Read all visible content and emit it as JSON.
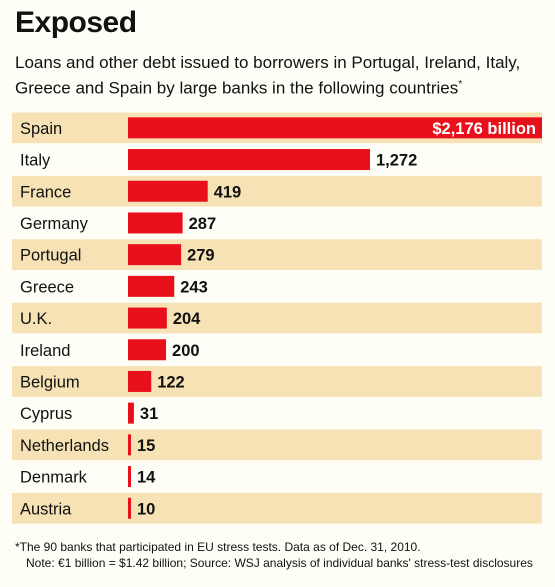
{
  "header": {
    "title": "Exposed",
    "subtitle": "Loans and other debt issued to borrowers in Portugal, Ireland, Italy, Greece and Spain by large banks in the following countries",
    "subtitle_mark": "*"
  },
  "footnotes": {
    "note_1": "*The 90 banks that participated in EU stress tests. Data as of Dec. 31, 2010.",
    "note_2": "Note: €1 billion = $1.42 billion; Source: WSJ analysis of individual banks' stress-test disclosures"
  },
  "colors": {
    "bar": "#e8111b",
    "stripe": "#f6e2b4",
    "background": "#fffef6"
  },
  "chart_data": {
    "type": "bar",
    "orientation": "horizontal",
    "categories": [
      "Spain",
      "Italy",
      "France",
      "Germany",
      "Portugal",
      "Greece",
      "U.K.",
      "Ireland",
      "Belgium",
      "Cyprus",
      "Netherlands",
      "Denmark",
      "Austria"
    ],
    "values": [
      2176,
      1272,
      419,
      287,
      279,
      243,
      204,
      200,
      122,
      31,
      15,
      14,
      10
    ],
    "value_labels": [
      "$2,176 billion",
      "1,272",
      "419",
      "287",
      "279",
      "243",
      "204",
      "200",
      "122",
      "31",
      "15",
      "14",
      "10"
    ],
    "xlim": [
      0,
      2176
    ],
    "grid": false,
    "legend": "none"
  }
}
